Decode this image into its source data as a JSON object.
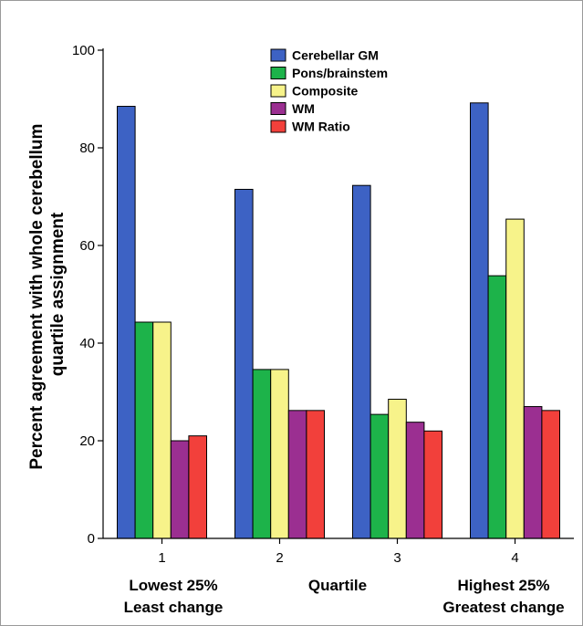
{
  "chart_data": {
    "type": "bar",
    "categories": [
      "1",
      "2",
      "3",
      "4"
    ],
    "category_notes": {
      "lowest": [
        "Lowest 25%",
        "Least change"
      ],
      "middle": "Quartile",
      "highest": [
        "Highest 25%",
        "Greatest change"
      ]
    },
    "ylabel_lines": [
      "Percent agreement with whole cerebellum",
      "quartile assignment"
    ],
    "ylim": [
      0,
      100
    ],
    "yticks": [
      0,
      20,
      40,
      60,
      80,
      100
    ],
    "legend_position": "top-center",
    "grid": false,
    "series": [
      {
        "name": "Cerebellar GM",
        "color": "#3d62c4",
        "values": [
          88.5,
          71.5,
          72.3,
          89.2
        ]
      },
      {
        "name": "Pons/brainstem",
        "color": "#1db34a",
        "values": [
          44.3,
          34.6,
          25.4,
          53.8
        ]
      },
      {
        "name": "Composite",
        "color": "#f7f38a",
        "values": [
          44.3,
          34.6,
          28.5,
          65.4
        ]
      },
      {
        "name": "WM",
        "color": "#9b2f91",
        "values": [
          20.0,
          26.2,
          23.8,
          27.0
        ]
      },
      {
        "name": "WM Ratio",
        "color": "#f2403b",
        "values": [
          21.0,
          26.2,
          22.0,
          26.2
        ]
      }
    ]
  }
}
